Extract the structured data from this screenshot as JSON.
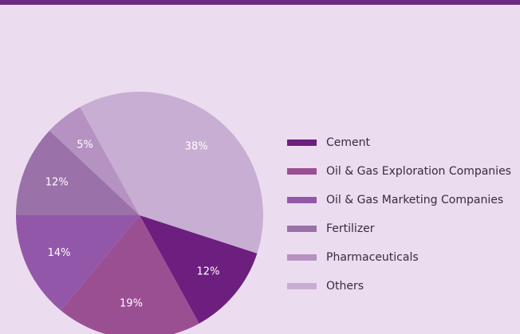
{
  "chart_data": {
    "type": "pie",
    "categories": [
      "Cement",
      "Oil & Gas Exploration Companies",
      "Oil & Gas Marketing Companies",
      "Fertilizer",
      "Pharmaceuticals",
      "Others"
    ],
    "values": [
      12,
      19,
      14,
      12,
      5,
      38
    ],
    "value_labels": [
      "12%",
      "19%",
      "14%",
      "12%",
      "5%",
      "38%"
    ],
    "colors": [
      "#6c1f7e",
      "#9b4f93",
      "#9357aa",
      "#9a71a8",
      "#b592c2",
      "#c8aed3"
    ]
  }
}
